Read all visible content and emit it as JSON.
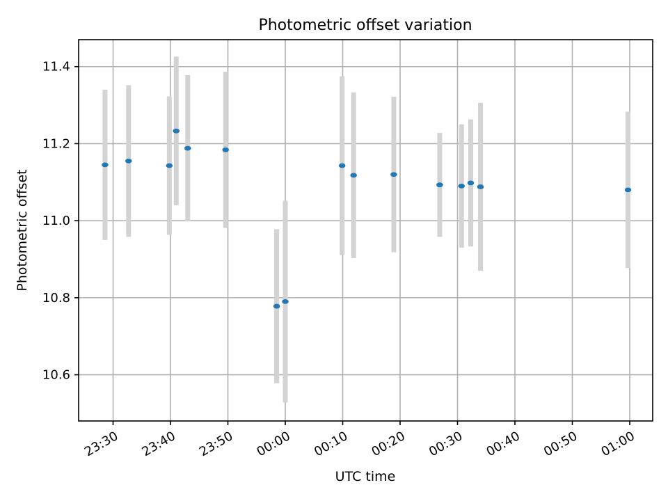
{
  "chart_data": {
    "type": "scatter",
    "title": "Photometric offset variation",
    "xlabel": "UTC time",
    "ylabel": "Photometric offset",
    "grid": true,
    "xlim": [
      -36.0,
      64.0
    ],
    "ylim": [
      10.48,
      11.47
    ],
    "x_ticks": [
      {
        "value": -30,
        "label": "23:30"
      },
      {
        "value": -20,
        "label": "23:40"
      },
      {
        "value": -10,
        "label": "23:50"
      },
      {
        "value": 0,
        "label": "00:00"
      },
      {
        "value": 10,
        "label": "00:10"
      },
      {
        "value": 20,
        "label": "00:20"
      },
      {
        "value": 30,
        "label": "00:30"
      },
      {
        "value": 40,
        "label": "00:40"
      },
      {
        "value": 50,
        "label": "00:50"
      },
      {
        "value": 60,
        "label": "01:00"
      }
    ],
    "y_ticks": [
      {
        "value": 10.6,
        "label": "10.6"
      },
      {
        "value": 10.8,
        "label": "10.8"
      },
      {
        "value": 11.0,
        "label": "11.0"
      },
      {
        "value": 11.2,
        "label": "11.2"
      },
      {
        "value": 11.4,
        "label": "11.4"
      }
    ],
    "marker_color": "#1f77b4",
    "errorbar_color": "#d3d3d3",
    "points": [
      {
        "x": -31.4,
        "y": 11.145,
        "err": 0.195
      },
      {
        "x": -27.3,
        "y": 11.155,
        "err": 0.197
      },
      {
        "x": -20.2,
        "y": 11.143,
        "err": 0.18
      },
      {
        "x": -19.0,
        "y": 11.233,
        "err": 0.193
      },
      {
        "x": -17.0,
        "y": 11.188,
        "err": 0.19
      },
      {
        "x": -10.4,
        "y": 11.184,
        "err": 0.203
      },
      {
        "x": -1.5,
        "y": 10.778,
        "err": 0.2
      },
      {
        "x": 0.0,
        "y": 10.79,
        "err": 0.262
      },
      {
        "x": 9.9,
        "y": 11.143,
        "err": 0.232
      },
      {
        "x": 11.9,
        "y": 11.118,
        "err": 0.215
      },
      {
        "x": 18.9,
        "y": 11.12,
        "err": 0.202
      },
      {
        "x": 26.9,
        "y": 11.093,
        "err": 0.135
      },
      {
        "x": 30.7,
        "y": 11.09,
        "err": 0.16
      },
      {
        "x": 32.3,
        "y": 11.098,
        "err": 0.165
      },
      {
        "x": 34.0,
        "y": 11.088,
        "err": 0.218
      },
      {
        "x": 59.7,
        "y": 11.08,
        "err": 0.203
      }
    ]
  }
}
